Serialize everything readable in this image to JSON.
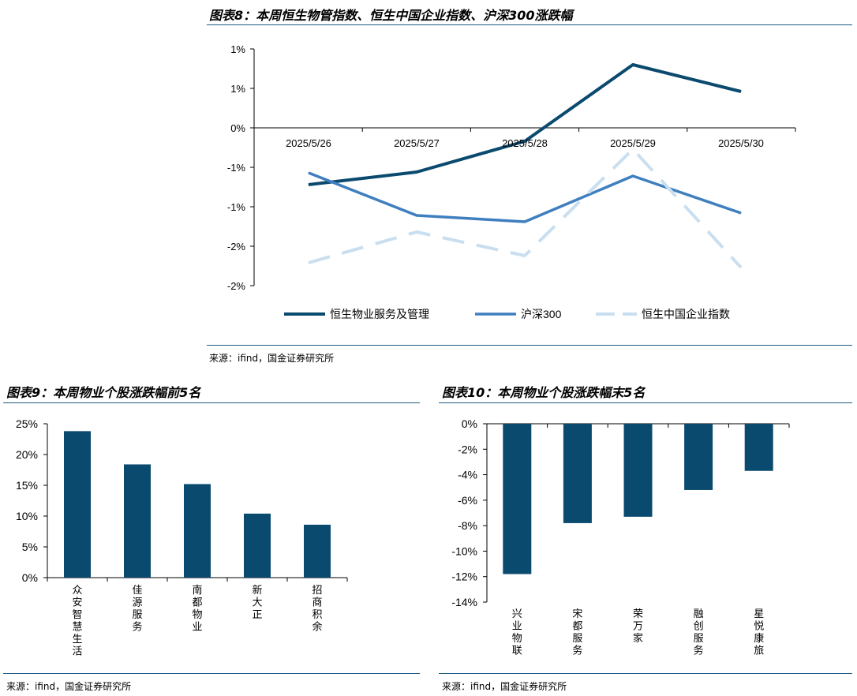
{
  "figure8": {
    "title": "图表8：本周恒生物管指数、恒生中国企业指数、沪深300涨跌幅",
    "source": "来源：ifind，国金证券研究所"
  },
  "figure9": {
    "title": "图表9：本周物业个股涨跌幅前5名",
    "source": "来源：ifind，国金证券研究所"
  },
  "figure10": {
    "title": "图表10：本周物业个股涨跌幅末5名",
    "source": "来源：ifind，国金证券研究所"
  },
  "chart_data": [
    {
      "type": "line",
      "categories": [
        "2025/5/26",
        "2025/5/27",
        "2025/5/28",
        "2025/5/29",
        "2025/5/30"
      ],
      "ytick_values": [
        1.0,
        0.5,
        0.0,
        -0.5,
        -1.0,
        -1.5,
        -2.0
      ],
      "ytick_labels": [
        "1%",
        "1%",
        "0%",
        "-1%",
        "-1%",
        "-2%",
        "-2%"
      ],
      "ylim": [
        -2.0,
        1.0
      ],
      "grid": false,
      "legend": "bottom",
      "series": [
        {
          "name": "恒生物业服务及管理",
          "color": "#0b4a6f",
          "dash": false,
          "width": 4,
          "values": [
            -0.72,
            -0.56,
            -0.17,
            0.8,
            0.46
          ]
        },
        {
          "name": "沪深300",
          "color": "#3f7fbf",
          "dash": false,
          "width": 3.5,
          "values": [
            -0.57,
            -1.11,
            -1.19,
            -0.61,
            -1.08
          ]
        },
        {
          "name": "恒生中国企业指数",
          "color": "#c9dff0",
          "dash": true,
          "width": 4,
          "values": [
            -1.71,
            -1.32,
            -1.62,
            -0.27,
            -1.77
          ]
        }
      ]
    },
    {
      "type": "bar",
      "categories": [
        "众安智慧生活",
        "佳源服务",
        "南都物业",
        "新大正",
        "招商积余"
      ],
      "values": [
        23.8,
        18.4,
        15.2,
        10.4,
        8.6
      ],
      "ytick_labels": [
        "25%",
        "20%",
        "15%",
        "10%",
        "5%",
        "0%"
      ],
      "ytick_values": [
        25,
        20,
        15,
        10,
        5,
        0
      ],
      "ylim": [
        0,
        25
      ],
      "color": "#0b4a6f"
    },
    {
      "type": "bar",
      "categories": [
        "兴业物联",
        "宋都服务",
        "荣万家",
        "融创服务",
        "星悦康旅"
      ],
      "values": [
        -11.8,
        -7.8,
        -7.3,
        -5.2,
        -3.7
      ],
      "ytick_labels": [
        "0%",
        "-2%",
        "-4%",
        "-6%",
        "-8%",
        "-10%",
        "-12%",
        "-14%"
      ],
      "ytick_values": [
        0,
        -2,
        -4,
        -6,
        -8,
        -10,
        -12,
        -14
      ],
      "ylim": [
        -14,
        0
      ],
      "color": "#0b4a6f"
    }
  ]
}
